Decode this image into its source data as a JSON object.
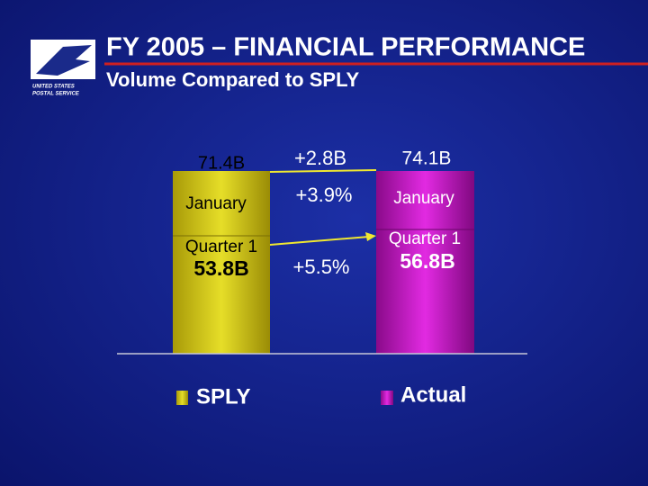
{
  "header": {
    "title": "FY 2005 – FINANCIAL PERFORMANCE",
    "subtitle": "Volume Compared to SPLY"
  },
  "logo": {
    "line1": "UNITED STATES",
    "line2": "POSTAL SERVICE"
  },
  "left": {
    "total": "71.4B",
    "january": "January",
    "quarter_label": "Quarter 1",
    "quarter_value": "53.8B"
  },
  "change": {
    "total": "+2.8B",
    "january": "+3.9%",
    "quarter": "+5.5%"
  },
  "right": {
    "total": "74.1B",
    "january": "January",
    "quarter_label": "Quarter 1",
    "quarter_value": "56.8B"
  },
  "legend": [
    "SPLY",
    "Actual"
  ]
}
